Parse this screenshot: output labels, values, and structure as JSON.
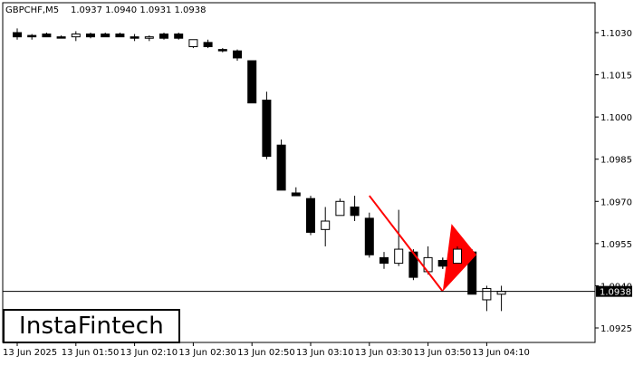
{
  "header": {
    "symbol": "GBPCHF,M5",
    "ohlc": "1.0937 1.0940 1.0931 1.0938"
  },
  "logo": {
    "text": "InstaFintech"
  },
  "current_price": {
    "label": "1.0938",
    "value": 1.0938
  },
  "colors": {
    "pattern": "#ff0000",
    "bull": "#ffffff",
    "bear": "#000000",
    "grid": "#000000"
  },
  "chart_data": {
    "type": "candlestick",
    "ylim": [
      1.092,
      1.104
    ],
    "y_ticks": [
      1.103,
      1.1015,
      1.1,
      1.0985,
      1.097,
      1.0955,
      1.094,
      1.0925
    ],
    "y_tick_labels": [
      "1.1030",
      "1.1015",
      "1.1000",
      "1.0985",
      "1.0970",
      "1.0955",
      "1.0940",
      "1.0925"
    ],
    "x_tick_labels": [
      "13 Jun 2025",
      "13 Jun 01:50",
      "13 Jun 02:10",
      "13 Jun 02:30",
      "13 Jun 02:50",
      "13 Jun 03:10",
      "13 Jun 03:30",
      "13 Jun 03:50",
      "13 Jun 04:10"
    ],
    "x_tick_candle_index": [
      0,
      4,
      8,
      12,
      16,
      20,
      24,
      28,
      32
    ],
    "candles": [
      {
        "o": 1.103,
        "h": 1.10315,
        "l": 1.10275,
        "c": 1.10285
      },
      {
        "o": 1.1029,
        "h": 1.10295,
        "l": 1.10275,
        "c": 1.10285
      },
      {
        "o": 1.10295,
        "h": 1.103,
        "l": 1.10285,
        "c": 1.10285
      },
      {
        "o": 1.10285,
        "h": 1.1029,
        "l": 1.10285,
        "c": 1.10285
      },
      {
        "o": 1.10285,
        "h": 1.10305,
        "l": 1.1027,
        "c": 1.10295
      },
      {
        "o": 1.10295,
        "h": 1.103,
        "l": 1.1028,
        "c": 1.10285
      },
      {
        "o": 1.10295,
        "h": 1.103,
        "l": 1.10285,
        "c": 1.10285
      },
      {
        "o": 1.10295,
        "h": 1.103,
        "l": 1.10285,
        "c": 1.10285
      },
      {
        "o": 1.10285,
        "h": 1.10295,
        "l": 1.1027,
        "c": 1.1028
      },
      {
        "o": 1.1028,
        "h": 1.1029,
        "l": 1.1027,
        "c": 1.10285
      },
      {
        "o": 1.10295,
        "h": 1.103,
        "l": 1.10275,
        "c": 1.1028
      },
      {
        "o": 1.10295,
        "h": 1.103,
        "l": 1.10275,
        "c": 1.1028
      },
      {
        "o": 1.1025,
        "h": 1.10275,
        "l": 1.10245,
        "c": 1.10275
      },
      {
        "o": 1.10265,
        "h": 1.10275,
        "l": 1.10245,
        "c": 1.1025
      },
      {
        "o": 1.1024,
        "h": 1.10245,
        "l": 1.1023,
        "c": 1.1024
      },
      {
        "o": 1.10235,
        "h": 1.1024,
        "l": 1.102,
        "c": 1.1021
      },
      {
        "o": 1.102,
        "h": 1.102,
        "l": 1.1005,
        "c": 1.1005
      },
      {
        "o": 1.1006,
        "h": 1.1009,
        "l": 1.0985,
        "c": 1.0986
      },
      {
        "o": 1.099,
        "h": 1.0992,
        "l": 1.0974,
        "c": 1.0974
      },
      {
        "o": 1.0973,
        "h": 1.0975,
        "l": 1.0972,
        "c": 1.0972
      },
      {
        "o": 1.0971,
        "h": 1.0972,
        "l": 1.0958,
        "c": 1.0959
      },
      {
        "o": 1.096,
        "h": 1.0968,
        "l": 1.0954,
        "c": 1.0963
      },
      {
        "o": 1.0965,
        "h": 1.0971,
        "l": 1.0965,
        "c": 1.097
      },
      {
        "o": 1.0968,
        "h": 1.0972,
        "l": 1.0963,
        "c": 1.0965
      },
      {
        "o": 1.0964,
        "h": 1.0966,
        "l": 1.095,
        "c": 1.0951
      },
      {
        "o": 1.095,
        "h": 1.0952,
        "l": 1.0946,
        "c": 1.0948
      },
      {
        "o": 1.0948,
        "h": 1.0967,
        "l": 1.0947,
        "c": 1.0953
      },
      {
        "o": 1.0952,
        "h": 1.0953,
        "l": 1.0942,
        "c": 1.0943
      },
      {
        "o": 1.0945,
        "h": 1.0954,
        "l": 1.0944,
        "c": 1.095
      },
      {
        "o": 1.0949,
        "h": 1.095,
        "l": 1.0946,
        "c": 1.0947
      },
      {
        "o": 1.0948,
        "h": 1.0954,
        "l": 1.0948,
        "c": 1.0953
      },
      {
        "o": 1.0952,
        "h": 1.0953,
        "l": 1.0937,
        "c": 1.0937
      },
      {
        "o": 1.0935,
        "h": 1.094,
        "l": 1.0931,
        "c": 1.0939
      },
      {
        "o": 1.0937,
        "h": 1.094,
        "l": 1.0931,
        "c": 1.0938
      }
    ],
    "pennant_pattern": {
      "pole_start_candle": 24,
      "pole_start_price": 1.0972,
      "pole_end_candle": 29,
      "pole_end_price": 1.0938,
      "flag_top_candle": 29.6,
      "flag_top_price": 1.0962,
      "flag_tip_candle": 31.3,
      "flag_tip_price": 1.0951
    },
    "horizontal_line_price": 1.0938
  }
}
